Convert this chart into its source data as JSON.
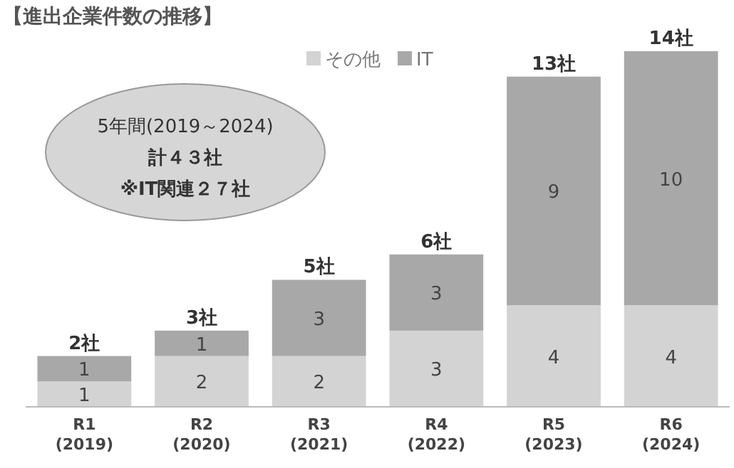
{
  "chart_data": {
    "type": "bar",
    "title": "【進出企業件数の推移】",
    "stacked": true,
    "data_labels": true,
    "legend": "top",
    "categories": [
      "R1\n(2019)",
      "R2\n(2020)",
      "R3\n(2021)",
      "R4\n(2022)",
      "R5\n(2023)",
      "R6\n(2024)"
    ],
    "series": [
      {
        "name": "その他",
        "color": "#d3d3d3",
        "values": [
          1,
          2,
          2,
          3,
          4,
          4
        ]
      },
      {
        "name": "IT",
        "color": "#a8a8a8",
        "values": [
          1,
          1,
          3,
          3,
          9,
          10
        ]
      }
    ],
    "totals": [
      "2社",
      "3社",
      "5社",
      "6社",
      "13社",
      "14社"
    ],
    "annotations": [
      "5年間(2019～2024)",
      "計４３社",
      "※IT関連２７社"
    ]
  }
}
